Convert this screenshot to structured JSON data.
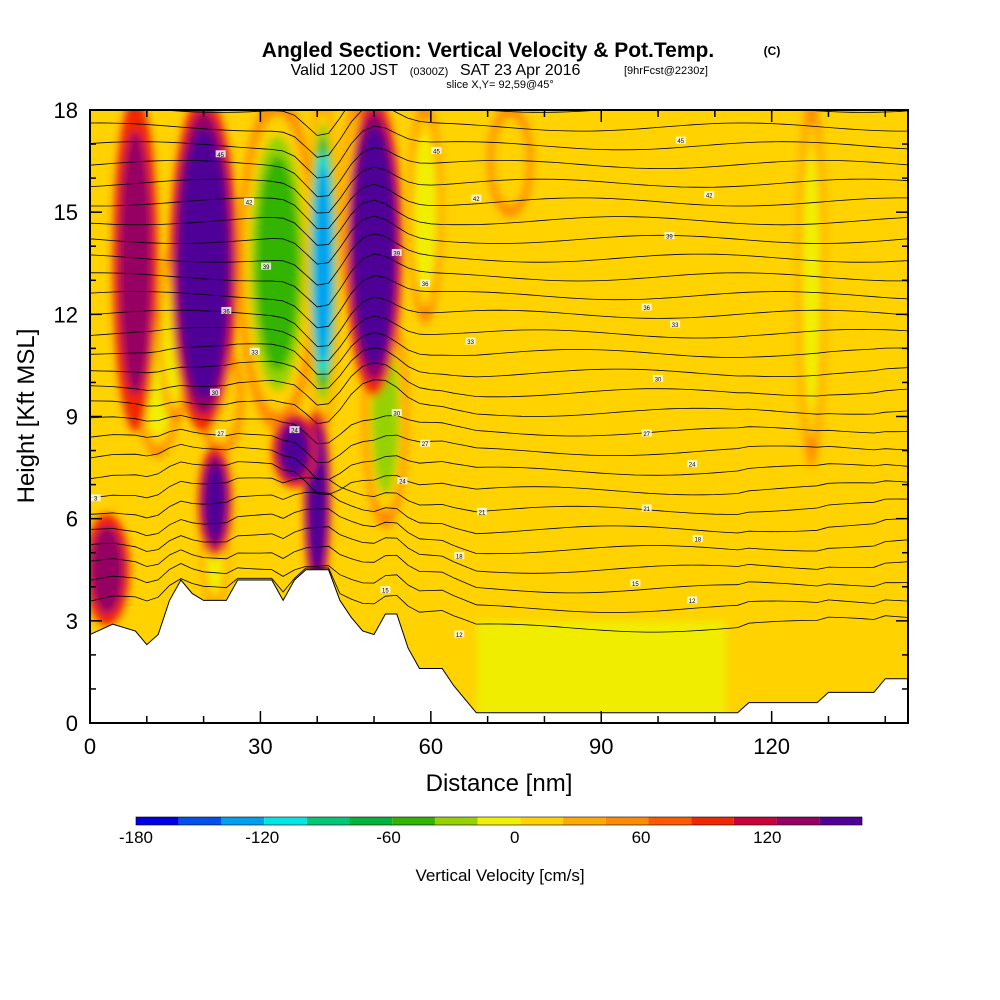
{
  "header": {
    "title": "Angled Section: Vertical Velocity & Pot.Temp.",
    "title_unit": "(C)",
    "valid_prefix": "Valid 1200 JST",
    "valid_zulu": "(0300Z)",
    "valid_date": "SAT 23 Apr 2016",
    "forecast": "[9hrFcst@2230z]",
    "slice": "slice X,Y= 92,59@45°"
  },
  "chart_data": {
    "type": "heatmap",
    "xlabel": "Distance [nm]",
    "ylabel": "Height [Kft MSL]",
    "xlim": [
      0,
      144
    ],
    "ylim": [
      0,
      18
    ],
    "x_ticks": [
      "0",
      "30",
      "60",
      "90",
      "120"
    ],
    "y_ticks": [
      "0",
      "3",
      "6",
      "9",
      "12",
      "15",
      "18"
    ],
    "colorbar": {
      "label": "Vertical Velocity [cm/s]",
      "range": [
        -180,
        150
      ],
      "step": 15,
      "tick_labels": [
        "-180",
        "-120",
        "-60",
        "0",
        "60",
        "120"
      ],
      "colors": [
        "#0000e6",
        "#0050f0",
        "#00a0f0",
        "#00e6e6",
        "#00c878",
        "#00b43c",
        "#32b400",
        "#96d200",
        "#f0f000",
        "#ffd200",
        "#ffaa00",
        "#ff8c00",
        "#ff5a00",
        "#f02800",
        "#c8003c",
        "#960064",
        "#500096"
      ]
    },
    "terrain_kft": [
      [
        0,
        2.6
      ],
      [
        4,
        2.9
      ],
      [
        8,
        2.7
      ],
      [
        10,
        2.3
      ],
      [
        12,
        2.6
      ],
      [
        14,
        3.6
      ],
      [
        16,
        4.2
      ],
      [
        18,
        3.8
      ],
      [
        20,
        3.6
      ],
      [
        24,
        3.6
      ],
      [
        26,
        4.2
      ],
      [
        32,
        4.2
      ],
      [
        34,
        3.6
      ],
      [
        36,
        4.2
      ],
      [
        38,
        4.5
      ],
      [
        42,
        4.5
      ],
      [
        44,
        3.6
      ],
      [
        46,
        3.1
      ],
      [
        48,
        2.7
      ],
      [
        50,
        2.6
      ],
      [
        52,
        3.2
      ],
      [
        54,
        3.2
      ],
      [
        56,
        2.2
      ],
      [
        58,
        1.6
      ],
      [
        62,
        1.6
      ],
      [
        64,
        1.1
      ],
      [
        68,
        0.3
      ],
      [
        114,
        0.3
      ],
      [
        116,
        0.6
      ],
      [
        128,
        0.6
      ],
      [
        130,
        0.9
      ],
      [
        138,
        0.9
      ],
      [
        140,
        1.3
      ],
      [
        144,
        1.3
      ]
    ],
    "updrafts": [
      {
        "x": 8,
        "w": 2.0,
        "y0": 9,
        "y1": 18,
        "value": 45
      },
      {
        "x": 20,
        "w": 3.0,
        "y0": 9,
        "y1": 18,
        "value": 120
      },
      {
        "x": 22,
        "w": 1.5,
        "y0": 5,
        "y1": 8,
        "value": 75
      },
      {
        "x": 40,
        "w": 1.2,
        "y0": 4,
        "y1": 9,
        "value": 90
      },
      {
        "x": 50,
        "w": 2.5,
        "y0": 10,
        "y1": 18,
        "value": 120
      },
      {
        "x": 36,
        "w": 2.0,
        "y0": 7,
        "y1": 9,
        "value": 60
      },
      {
        "x": 3,
        "w": 2.0,
        "y0": 3,
        "y1": 6,
        "value": 45
      }
    ],
    "downdrafts": [
      {
        "x": 12,
        "w": 2.0,
        "y0": 8,
        "y1": 12,
        "value": -60
      },
      {
        "x": 15,
        "w": 1.5,
        "y0": 9,
        "y1": 14,
        "value": -50
      },
      {
        "x": 23,
        "w": 2.0,
        "y0": 8,
        "y1": 11,
        "value": -40
      },
      {
        "x": 33,
        "w": 3.5,
        "y0": 9,
        "y1": 18,
        "value": -90
      },
      {
        "x": 41,
        "w": 1.5,
        "y0": 9,
        "y1": 18,
        "value": -140
      },
      {
        "x": 47,
        "w": 1.5,
        "y0": 12,
        "y1": 18,
        "value": -60
      },
      {
        "x": 52,
        "w": 2.0,
        "y0": 6,
        "y1": 12,
        "value": -70
      },
      {
        "x": 59,
        "w": 1.5,
        "y0": 12,
        "y1": 18,
        "value": -55
      },
      {
        "x": 74,
        "w": 2.0,
        "y0": 15,
        "y1": 18,
        "value": -45
      },
      {
        "x": 127,
        "w": 1.2,
        "y0": 8,
        "y1": 18,
        "value": -50
      },
      {
        "x": 22,
        "w": 1.2,
        "y0": 3.5,
        "y1": 6.5,
        "value": -50
      }
    ],
    "isentrope_labels": [
      {
        "x": 1,
        "y": 6.6,
        "text": "3"
      },
      {
        "x": 23,
        "y": 16.7,
        "text": "45"
      },
      {
        "x": 28,
        "y": 15.3,
        "text": "42"
      },
      {
        "x": 31,
        "y": 13.4,
        "text": "39"
      },
      {
        "x": 24,
        "y": 12.1,
        "text": "36"
      },
      {
        "x": 29,
        "y": 10.9,
        "text": "33"
      },
      {
        "x": 22,
        "y": 9.7,
        "text": "30"
      },
      {
        "x": 23,
        "y": 8.5,
        "text": "27"
      },
      {
        "x": 36,
        "y": 8.6,
        "text": "24"
      },
      {
        "x": 61,
        "y": 16.8,
        "text": "45"
      },
      {
        "x": 68,
        "y": 15.4,
        "text": "42"
      },
      {
        "x": 54,
        "y": 13.8,
        "text": "39"
      },
      {
        "x": 59,
        "y": 12.9,
        "text": "36"
      },
      {
        "x": 67,
        "y": 11.2,
        "text": "33"
      },
      {
        "x": 54,
        "y": 9.1,
        "text": "30"
      },
      {
        "x": 59,
        "y": 8.2,
        "text": "27"
      },
      {
        "x": 55,
        "y": 7.1,
        "text": "24"
      },
      {
        "x": 69,
        "y": 6.2,
        "text": "21"
      },
      {
        "x": 65,
        "y": 4.9,
        "text": "18"
      },
      {
        "x": 52,
        "y": 3.9,
        "text": "15"
      },
      {
        "x": 65,
        "y": 2.6,
        "text": "12"
      },
      {
        "x": 104,
        "y": 17.1,
        "text": "45"
      },
      {
        "x": 109,
        "y": 15.5,
        "text": "42"
      },
      {
        "x": 102,
        "y": 14.3,
        "text": "39"
      },
      {
        "x": 98,
        "y": 12.2,
        "text": "36"
      },
      {
        "x": 103,
        "y": 11.7,
        "text": "33"
      },
      {
        "x": 100,
        "y": 10.1,
        "text": "30"
      },
      {
        "x": 98,
        "y": 8.5,
        "text": "27"
      },
      {
        "x": 106,
        "y": 7.6,
        "text": "24"
      },
      {
        "x": 98,
        "y": 6.3,
        "text": "21"
      },
      {
        "x": 107,
        "y": 5.4,
        "text": "18"
      },
      {
        "x": 96,
        "y": 4.1,
        "text": "15"
      },
      {
        "x": 106,
        "y": 3.6,
        "text": "12"
      }
    ]
  }
}
